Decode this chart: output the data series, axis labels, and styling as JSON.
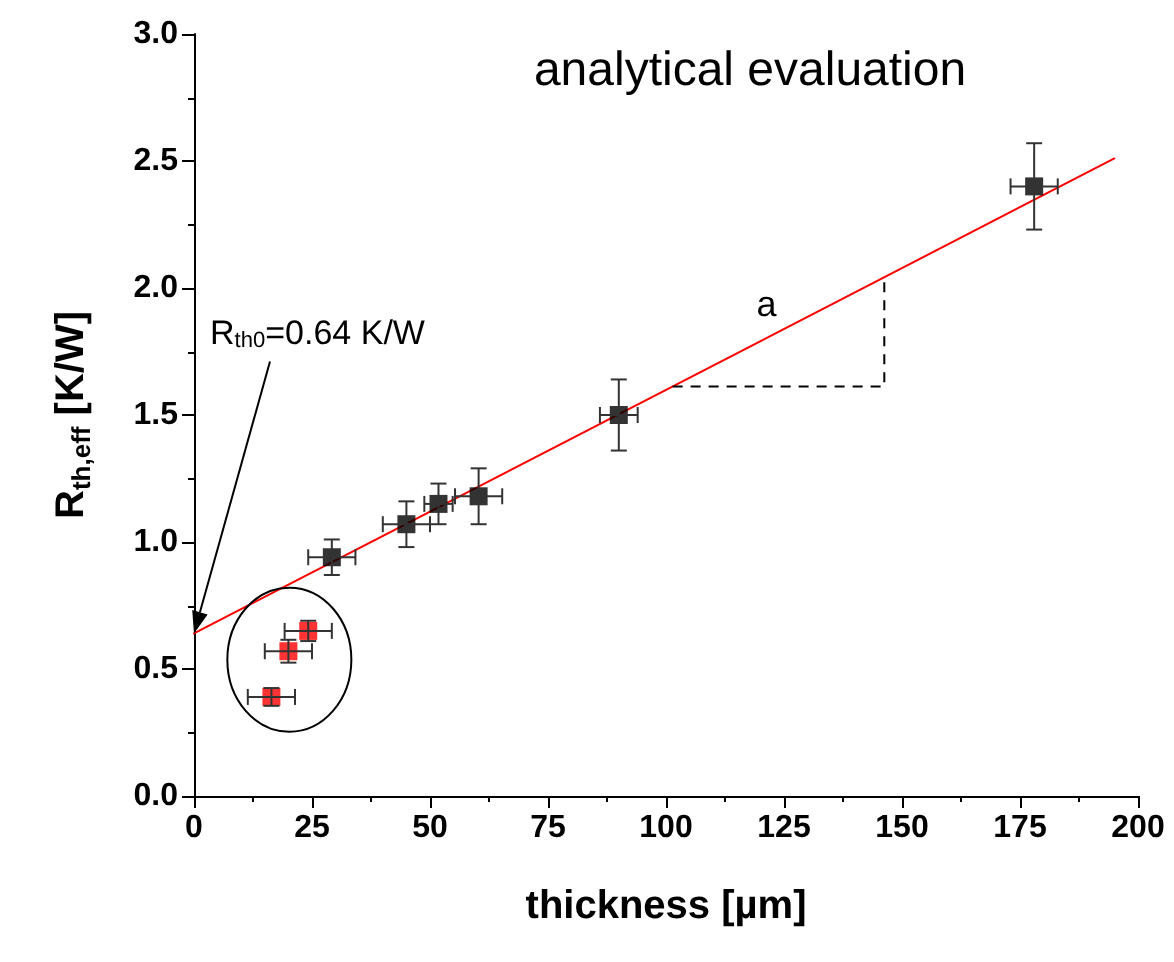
{
  "chart_data": {
    "type": "scatter",
    "title": "analytical evaluation",
    "xlabel": "thickness [µm]",
    "ylabel": "R$_{th,eff}$ [K/W]",
    "xlim": [
      0,
      200
    ],
    "xticks": [
      0,
      25,
      50,
      75,
      100,
      125,
      150,
      175,
      200
    ],
    "ylim": [
      0,
      3
    ],
    "yticks": [
      {
        "value": 0,
        "label": "0.0"
      },
      0.5,
      {
        "value": 1,
        "label": "1.0"
      },
      1.5,
      {
        "value": 2,
        "label": "2.0"
      },
      2.5,
      {
        "value": 3,
        "label": "3.0"
      }
    ],
    "grid": false,
    "marker": "square",
    "series": [
      {
        "color": "#000000",
        "x": [
          29.2,
          45,
          51.8,
          60.3,
          90,
          178
        ],
        "values": [
          0.94,
          1.07,
          1.15,
          1.18,
          1.5,
          2.4
        ],
        "errors": [
          0.07,
          0.09,
          0.08,
          0.11,
          0.14,
          0.17
        ],
        "xerrors": [
          5,
          5,
          3,
          5,
          4,
          5
        ]
      },
      {
        "color": "#ff0000",
        "x": [
          16.4,
          20,
          24.2
        ],
        "values": [
          0.39,
          0.57,
          0.65
        ],
        "errors": [
          0.035,
          0.045,
          0.04
        ],
        "xerrors": [
          5,
          5,
          5
        ]
      },
      {
        "type": "line",
        "color": "#ff0000",
        "marker": "none",
        "x": [
          0,
          195
        ],
        "values": [
          0.64,
          2.51
        ]
      }
    ],
    "annotations": [
      "a",
      "R$_{th0}$=0.64 K/W"
    ]
  }
}
